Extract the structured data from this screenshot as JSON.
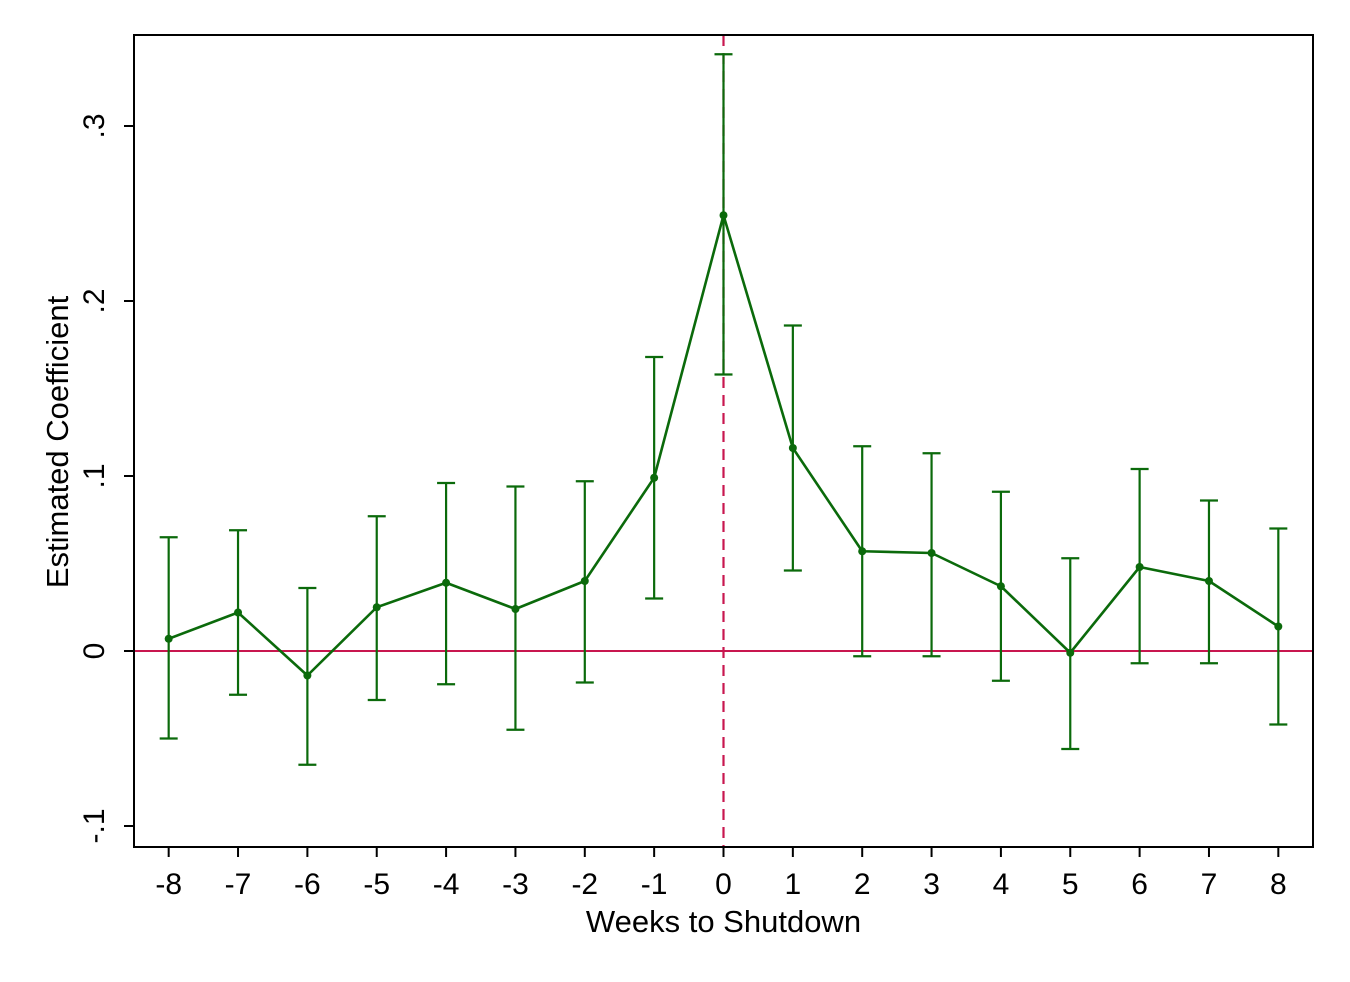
{
  "chart_data": {
    "type": "line",
    "title": "",
    "xlabel": "Weeks to Shutdown",
    "ylabel": "Estimated Coefficient",
    "xlim": [
      -8.5,
      8.5
    ],
    "ylim": [
      -0.112,
      0.352
    ],
    "x_ticks": [
      -8,
      -7,
      -6,
      -5,
      -4,
      -3,
      -2,
      -1,
      0,
      1,
      2,
      3,
      4,
      5,
      6,
      7,
      8
    ],
    "x_tick_labels": [
      "-8",
      "-7",
      "-6",
      "-5",
      "-4",
      "-3",
      "-2",
      "-1",
      "0",
      "1",
      "2",
      "3",
      "4",
      "5",
      "6",
      "7",
      "8"
    ],
    "y_ticks": [
      -0.1,
      0,
      0.1,
      0.2,
      0.3
    ],
    "y_tick_labels": [
      "-.1",
      "0",
      ".1",
      ".2",
      ".3"
    ],
    "grid": false,
    "legend": "none",
    "reference_lines": {
      "horizontal_y": 0,
      "vertical_x": 0,
      "color": "#c8174f"
    },
    "series": [
      {
        "color": "#0b6a0b",
        "x": [
          -8,
          -7,
          -6,
          -5,
          -4,
          -3,
          -2,
          -1,
          0,
          1,
          2,
          3,
          4,
          5,
          6,
          7,
          8
        ],
        "y": [
          0.007,
          0.022,
          -0.014,
          0.025,
          0.039,
          0.024,
          0.04,
          0.099,
          0.249,
          0.116,
          0.057,
          0.056,
          0.037,
          -0.001,
          0.048,
          0.04,
          0.014
        ],
        "ci_low": [
          -0.05,
          -0.025,
          -0.065,
          -0.028,
          -0.019,
          -0.045,
          -0.018,
          0.03,
          0.158,
          0.046,
          -0.003,
          -0.003,
          -0.017,
          -0.056,
          -0.007,
          -0.007,
          -0.042
        ],
        "ci_high": [
          0.065,
          0.069,
          0.036,
          0.077,
          0.096,
          0.094,
          0.097,
          0.168,
          0.341,
          0.186,
          0.117,
          0.113,
          0.091,
          0.053,
          0.104,
          0.086,
          0.07
        ]
      }
    ]
  }
}
